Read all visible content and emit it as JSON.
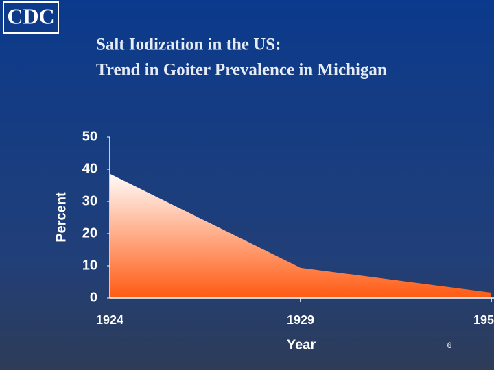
{
  "logo": "CDC",
  "slide_number": "6",
  "chart_data": {
    "type": "area",
    "title": "Salt Iodization in the US:",
    "subtitle": "Trend in Goiter Prevalence in Michigan",
    "xlabel": "Year",
    "ylabel": "Percent",
    "categories": [
      "1924",
      "1929",
      "195"
    ],
    "values": [
      38.6,
      9.4,
      1.7
    ],
    "color": "#ff5a12",
    "ylim": [
      0,
      50
    ],
    "yticks": [
      0,
      10,
      20,
      30,
      40,
      50
    ]
  }
}
